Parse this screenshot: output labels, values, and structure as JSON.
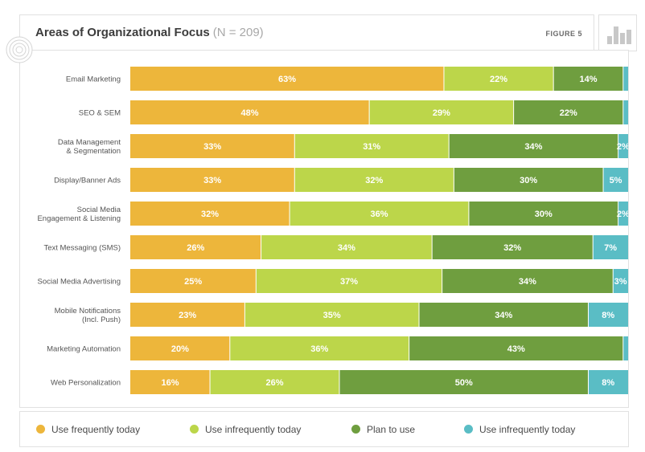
{
  "header": {
    "title": "Areas of Organizational Focus",
    "subtitle": "(N = 209)",
    "figure_label": "FIGURE 5"
  },
  "icons": {
    "header_icon": "bar-chart-icon",
    "side_icon": "concentric-circles-icon"
  },
  "colors": {
    "use_frequently": "#EDB63B",
    "use_infrequently": "#BCD64A",
    "plan_to_use": "#6F9E3F",
    "use_infrequently_2": "#5ABDC5"
  },
  "legend": [
    {
      "label": "Use frequently today",
      "color": "#EDB63B"
    },
    {
      "label": "Use infrequently today",
      "color": "#BCD64A"
    },
    {
      "label": "Plan to use",
      "color": "#6F9E3F"
    },
    {
      "label": "Use infrequently today",
      "color": "#5ABDC5"
    }
  ],
  "chart_data": {
    "type": "bar",
    "orientation": "horizontal",
    "stacked": true,
    "percent_stacked": true,
    "title": "Areas of Organizational Focus",
    "subtitle": "(N = 209)",
    "categories": [
      [
        "Email Marketing"
      ],
      [
        "SEO & SEM"
      ],
      [
        "Data Management",
        "& Segmentation"
      ],
      [
        "Display/Banner Ads"
      ],
      [
        "Social Media",
        "Engagement & Listening"
      ],
      [
        "Text Messaging (SMS)"
      ],
      [
        "Social Media Advertising"
      ],
      [
        "Mobile Notifications",
        "(Incl. Push)"
      ],
      [
        "Marketing Automation"
      ],
      [
        "Web Personalization"
      ]
    ],
    "series": [
      {
        "name": "Use frequently today",
        "color": "#EDB63B",
        "values": [
          63,
          48,
          33,
          33,
          32,
          26,
          25,
          23,
          20,
          16
        ]
      },
      {
        "name": "Use infrequently today",
        "color": "#BCD64A",
        "values": [
          22,
          29,
          31,
          32,
          36,
          34,
          37,
          35,
          36,
          26
        ]
      },
      {
        "name": "Plan to use",
        "color": "#6F9E3F",
        "values": [
          14,
          22,
          34,
          30,
          30,
          32,
          34,
          34,
          43,
          50
        ]
      },
      {
        "name": "Use infrequently today",
        "color": "#5ABDC5",
        "values": [
          1,
          1,
          2,
          5,
          2,
          7,
          3,
          8,
          1,
          8
        ]
      }
    ],
    "labels_shown_min": 2,
    "grid": false,
    "legend_position": "bottom"
  }
}
